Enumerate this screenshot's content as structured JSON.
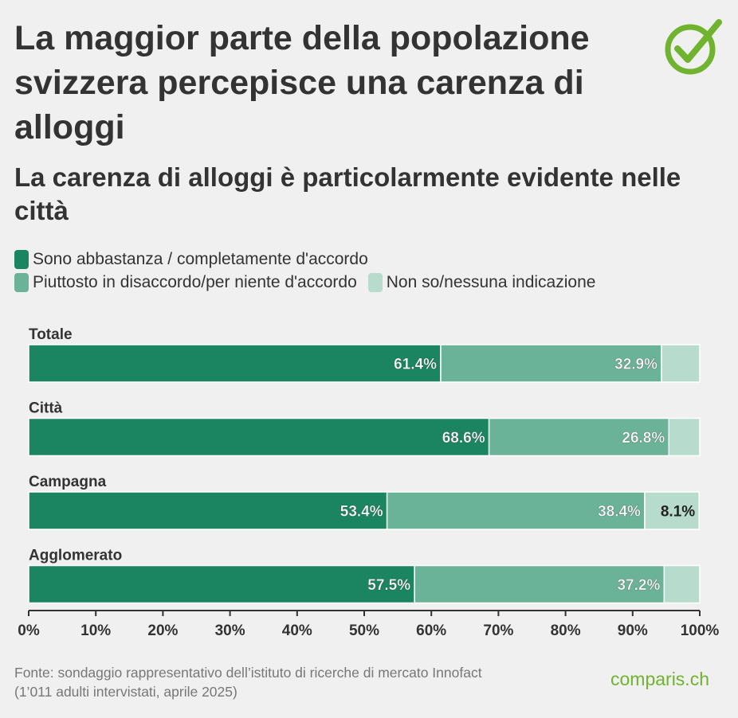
{
  "title": "La maggior parte della popolazione svizzera percepisce una carenza di alloggi",
  "subtitle": "La carenza di alloggi è particolarmente evidente nelle città",
  "legend": [
    {
      "label": "Sono abbastanza / completamente d'accordo",
      "color": "#1a8560"
    },
    {
      "label": "Piuttosto in disaccordo/per niente d'accordo",
      "color": "#6ab399"
    },
    {
      "label": "Non so/nessuna indicazione",
      "color": "#b7dbcc"
    }
  ],
  "footer": {
    "line1": "Fonte: sondaggio rappresentativo dell’istituto di ricerche di mercato Innofact",
    "line2": "(1’011 adulti intervistati, aprile 2025)"
  },
  "brand": "comparis.ch",
  "logo_icon": "checkmark-circle-icon",
  "chart_data": {
    "type": "bar",
    "orientation": "horizontal",
    "stacked": true,
    "categories": [
      "Totale",
      "Città",
      "Campagna",
      "Agglomerato"
    ],
    "series": [
      {
        "name": "Sono abbastanza / completamente d'accordo",
        "values": [
          61.4,
          68.6,
          53.4,
          57.5
        ],
        "labels": [
          "61.4%",
          "68.6%",
          "53.4%",
          "57.5%"
        ],
        "color": "#1a8560"
      },
      {
        "name": "Piuttosto in disaccordo/per niente d'accordo",
        "values": [
          32.9,
          26.8,
          38.4,
          37.2
        ],
        "labels": [
          "32.9%",
          "26.8%",
          "38.4%",
          "37.2%"
        ],
        "color": "#6ab399"
      },
      {
        "name": "Non so/nessuna indicazione",
        "values": [
          5.7,
          4.6,
          8.1,
          5.3
        ],
        "labels": [
          "",
          "",
          "8.1%",
          ""
        ],
        "color": "#b7dbcc"
      }
    ],
    "xlim": [
      0,
      100
    ],
    "xticks": [
      "0%",
      "10%",
      "20%",
      "30%",
      "40%",
      "50%",
      "60%",
      "70%",
      "80%",
      "90%",
      "100%"
    ],
    "grid": false,
    "legend_position": "top-left"
  }
}
